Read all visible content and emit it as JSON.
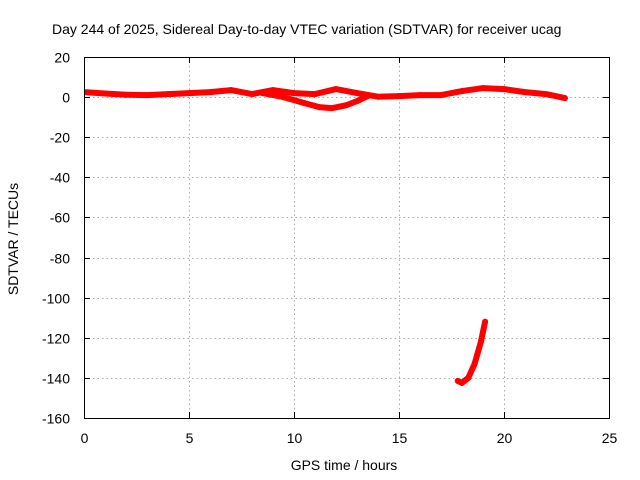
{
  "chart_data": {
    "type": "line",
    "title": "Day 244 of 2025, Sidereal Day-to-day VTEC variation (SDTVAR) for receiver ucag",
    "xlabel": "GPS time / hours",
    "ylabel": "SDTVAR / TECUs",
    "xlim": [
      0,
      25
    ],
    "ylim": [
      -160,
      20
    ],
    "x_ticks": [
      0,
      5,
      10,
      15,
      20,
      25
    ],
    "y_ticks": [
      -160,
      -140,
      -120,
      -100,
      -80,
      -60,
      -40,
      -20,
      0,
      20
    ],
    "x_tick_labels": [
      "0",
      "5",
      "10",
      "15",
      "20",
      "25"
    ],
    "y_tick_labels": [
      "-160",
      "-140",
      "-120",
      "-100",
      "-80",
      "-60",
      "-40",
      "-20",
      "0",
      "20"
    ],
    "grid": true,
    "legend": "none",
    "series": [
      {
        "name": "main_track",
        "color": "#ff0000",
        "x": [
          0.0,
          1.0,
          2.0,
          3.0,
          4.0,
          5.0,
          6.0,
          7.0,
          8.0,
          9.0,
          10.0,
          11.0,
          12.0,
          13.0,
          14.0,
          15.0,
          16.0,
          17.0,
          18.0,
          19.0,
          20.0,
          21.0,
          22.0,
          22.9
        ],
        "y": [
          2.5,
          1.8,
          1.2,
          1.0,
          1.5,
          2.0,
          2.5,
          3.5,
          1.5,
          3.5,
          2.0,
          1.5,
          4.0,
          2.0,
          0.2,
          0.5,
          1.0,
          1.0,
          3.0,
          4.5,
          4.0,
          2.5,
          1.5,
          -0.5
        ]
      },
      {
        "name": "dip_track",
        "color": "#ff0000",
        "x": [
          8.5,
          9.5,
          10.5,
          11.2,
          11.8,
          12.5,
          13.0,
          13.5
        ],
        "y": [
          2.0,
          0.0,
          -3.0,
          -5.0,
          -5.5,
          -4.0,
          -2.0,
          0.5
        ]
      },
      {
        "name": "low_segment",
        "color": "#ff0000",
        "x": [
          17.8,
          18.0,
          18.3,
          18.6,
          18.9,
          19.1
        ],
        "y": [
          -141.5,
          -142.5,
          -140.0,
          -133.0,
          -122.0,
          -112.0
        ]
      }
    ]
  }
}
